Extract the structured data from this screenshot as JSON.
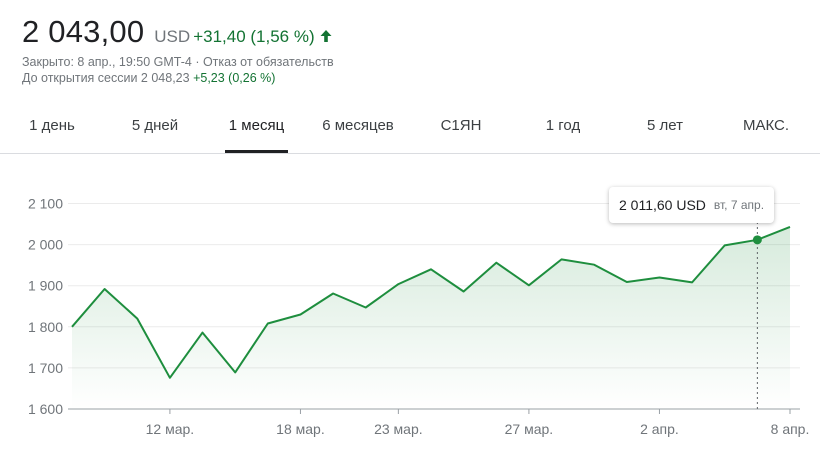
{
  "quote": {
    "price": "2 043,00",
    "currency": "USD",
    "change": "+31,40 (1,56 %)",
    "closed_line": "Закрыто: 8 апр., 19:50 GMT-4 · Отказ от обязательств",
    "premarket_label": "До открытия сессии 2 048,23",
    "premarket_change": "+5,23 (0,26 %)"
  },
  "tabs": [
    {
      "label": "1 день"
    },
    {
      "label": "5 дней"
    },
    {
      "label": "1 месяц",
      "active": true
    },
    {
      "label": "6 месяцев"
    },
    {
      "label": "С1ЯН"
    },
    {
      "label": "1 год"
    },
    {
      "label": "5 лет"
    },
    {
      "label": "МАКС."
    }
  ],
  "tooltip": {
    "value": "2 011,60 USD",
    "date": "вт, 7 апр."
  },
  "colors": {
    "line": "#1e8e3e",
    "up": "#137333",
    "muted": "#70757a"
  },
  "chart_data": {
    "type": "area",
    "title": "",
    "xlabel": "",
    "ylabel": "",
    "ylim": [
      1600,
      2120
    ],
    "y_ticks": [
      "2 100",
      "2 000",
      "1 900",
      "1 800",
      "1 700",
      "1 600"
    ],
    "y_tick_values": [
      2100,
      2000,
      1900,
      1800,
      1700,
      1600
    ],
    "x_tick_labels": [
      "12 мар.",
      "18 мар.",
      "23 мар.",
      "27 мар.",
      "2 апр.",
      "8 апр."
    ],
    "x_tick_index": [
      3,
      7,
      10,
      14,
      18,
      22
    ],
    "x": [
      "9 мар.",
      "10 мар.",
      "11 мар.",
      "12 мар.",
      "13 мар.",
      "16 мар.",
      "17 мар.",
      "18 мар.",
      "19 мар.",
      "20 мар.",
      "23 мар.",
      "24 мар.",
      "25 мар.",
      "26 мар.",
      "27 мар.",
      "30 мар.",
      "31 мар.",
      "1 апр.",
      "2 апр.",
      "3 апр.",
      "6 апр.",
      "7 апр.",
      "8 апр."
    ],
    "series": [
      {
        "values": [
          1800,
          1892,
          1820,
          1676,
          1786,
          1689,
          1808,
          1830,
          1881,
          1847,
          1904,
          1940,
          1886,
          1956,
          1901,
          1964,
          1951,
          1909,
          1920,
          1908,
          1998,
          2011.6,
          2043
        ]
      }
    ],
    "highlight_index": 21,
    "grid": true,
    "legend": "none"
  }
}
